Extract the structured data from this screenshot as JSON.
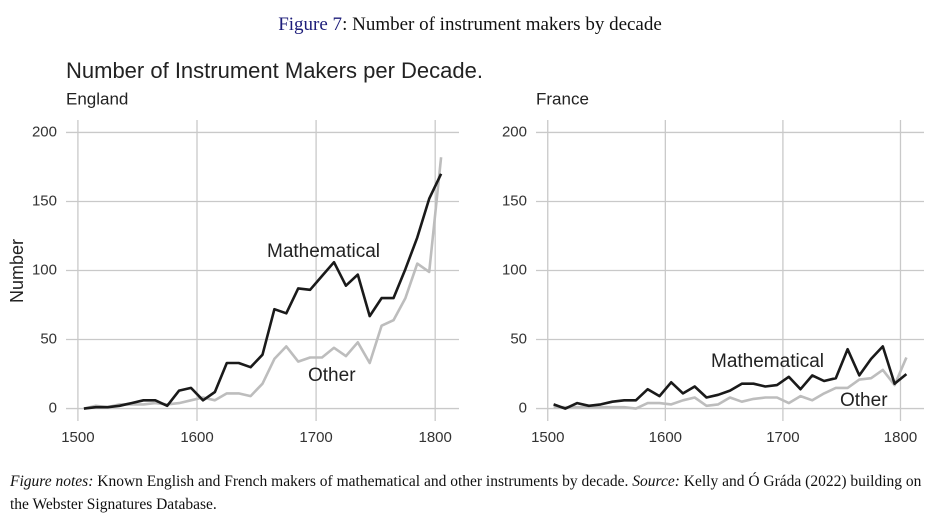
{
  "figure": {
    "label": "Figure 7",
    "caption": ": Number of instrument makers by decade"
  },
  "title": "Number of Instrument Makers per Decade.",
  "y_label": "Number",
  "chart_data": [
    {
      "type": "line",
      "title": "England",
      "x": [
        1505,
        1515,
        1525,
        1535,
        1545,
        1555,
        1565,
        1575,
        1585,
        1595,
        1605,
        1615,
        1625,
        1635,
        1645,
        1655,
        1665,
        1675,
        1685,
        1695,
        1705,
        1715,
        1725,
        1735,
        1745,
        1755,
        1765,
        1775,
        1785,
        1795,
        1805
      ],
      "series": [
        {
          "name": "Mathematical",
          "color": "#1a1a1a",
          "values": [
            0,
            1,
            1,
            2,
            4,
            6,
            6,
            2,
            13,
            15,
            6,
            12,
            33,
            33,
            30,
            39,
            72,
            69,
            87,
            86,
            96,
            106,
            89,
            97,
            67,
            80,
            80,
            101,
            124,
            152,
            170
          ]
        },
        {
          "name": "Other",
          "color": "#bdbdbd",
          "values": [
            0,
            2,
            1,
            3,
            3,
            3,
            4,
            3,
            4,
            6,
            8,
            6,
            11,
            11,
            9,
            18,
            36,
            45,
            34,
            37,
            37,
            44,
            38,
            48,
            33,
            60,
            64,
            80,
            105,
            99,
            182
          ]
        }
      ],
      "xlim": [
        1490,
        1820
      ],
      "ylim": [
        -9,
        209
      ],
      "xticks": [
        1500,
        1600,
        1700,
        1800
      ],
      "yticks": [
        0,
        50,
        100,
        150,
        200
      ],
      "grid": true
    },
    {
      "type": "line",
      "title": "France",
      "x": [
        1505,
        1515,
        1525,
        1535,
        1545,
        1555,
        1565,
        1575,
        1585,
        1595,
        1605,
        1615,
        1625,
        1635,
        1645,
        1655,
        1665,
        1675,
        1685,
        1695,
        1705,
        1715,
        1725,
        1735,
        1745,
        1755,
        1765,
        1775,
        1785,
        1795,
        1805
      ],
      "series": [
        {
          "name": "Mathematical",
          "color": "#1a1a1a",
          "values": [
            3,
            0,
            4,
            2,
            3,
            5,
            6,
            6,
            14,
            9,
            19,
            11,
            16,
            8,
            10,
            13,
            18,
            18,
            16,
            17,
            23,
            14,
            24,
            20,
            22,
            43,
            24,
            36,
            45,
            18,
            25
          ]
        },
        {
          "name": "Other",
          "color": "#bdbdbd",
          "values": [
            1,
            1,
            1,
            1,
            1,
            1,
            1,
            0,
            4,
            4,
            3,
            6,
            8,
            2,
            3,
            8,
            5,
            7,
            8,
            8,
            4,
            9,
            6,
            11,
            15,
            15,
            21,
            22,
            28,
            17,
            37
          ]
        }
      ],
      "xlim": [
        1490,
        1820
      ],
      "ylim": [
        -9,
        209
      ],
      "xticks": [
        1500,
        1600,
        1700,
        1800
      ],
      "yticks": [
        0,
        50,
        100,
        150,
        200
      ],
      "grid": true
    }
  ],
  "notes": {
    "label": "Figure notes:",
    "text": "Known English and French makers of mathematical and other instruments by decade.",
    "source_label": "Source:",
    "source_text": "Kelly and Ó Gráda (2022) building on the Webster Signatures Database."
  }
}
